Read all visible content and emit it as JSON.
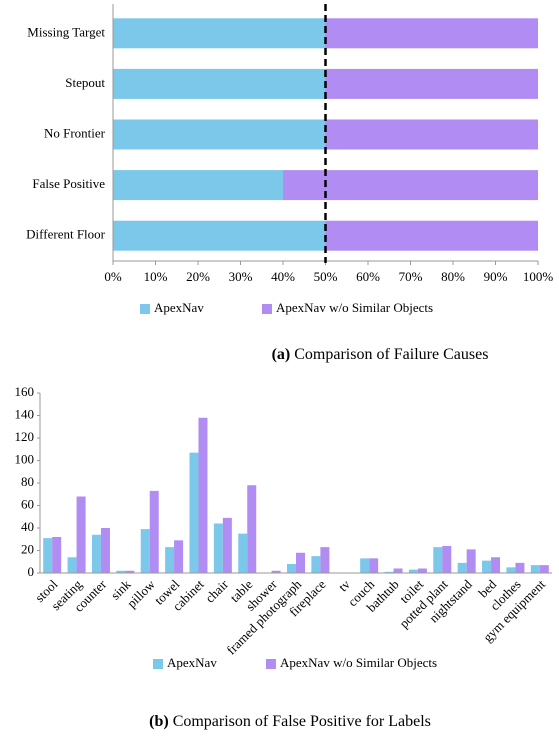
{
  "chart_data": [
    {
      "type": "bar",
      "horizontal": true,
      "stacked": true,
      "categories": [
        "Missing Target",
        "Stepout",
        "No Frontier",
        "False Positive",
        "Different Floor"
      ],
      "series": [
        {
          "name": "ApexNav",
          "color": "#7cc8ea",
          "values": [
            50,
            50,
            50,
            40,
            50
          ]
        },
        {
          "name": "ApexNav w/o Similar Objects",
          "color": "#b18cf2",
          "values": [
            50,
            50,
            50,
            60,
            50
          ]
        }
      ],
      "xlim": [
        0,
        100
      ],
      "xticks": [
        {
          "value": 0,
          "label": "0%"
        },
        {
          "value": 10,
          "label": "10%"
        },
        {
          "value": 20,
          "label": "20%"
        },
        {
          "value": 30,
          "label": "30%"
        },
        {
          "value": 40,
          "label": "40%"
        },
        {
          "value": 50,
          "label": "50%"
        },
        {
          "value": 60,
          "label": "60%"
        },
        {
          "value": 70,
          "label": "70%"
        },
        {
          "value": 80,
          "label": "80%"
        },
        {
          "value": 90,
          "label": "90%"
        },
        {
          "value": 100,
          "label": "100%"
        }
      ],
      "reference_line": 50,
      "caption_label": "(a)",
      "caption": "Comparison of Failure Causes"
    },
    {
      "type": "bar",
      "horizontal": false,
      "stacked": false,
      "categories": [
        "stool",
        "seating",
        "counter",
        "sink",
        "pillow",
        "towel",
        "cabinet",
        "chair",
        "table",
        "shower",
        "framed photograph",
        "fireplace",
        "tv",
        "couch",
        "bathtub",
        "toilet",
        "potted plant",
        "nightstand",
        "bed",
        "clothes",
        "gym equipment"
      ],
      "series": [
        {
          "name": "ApexNav",
          "color": "#7cc8ea",
          "values": [
            31,
            14,
            34,
            2,
            39,
            23,
            107,
            44,
            35,
            0,
            8,
            15,
            0,
            13,
            1,
            3,
            23,
            9,
            11,
            5,
            7
          ]
        },
        {
          "name": "ApexNav w/o Similar Objects",
          "color": "#b18cf2",
          "values": [
            32,
            68,
            40,
            2,
            73,
            29,
            138,
            49,
            78,
            2,
            18,
            23,
            0,
            13,
            4,
            4,
            24,
            21,
            14,
            9,
            7
          ]
        }
      ],
      "ylim": [
        0,
        160
      ],
      "yticks": [
        0,
        20,
        40,
        60,
        80,
        100,
        120,
        140,
        160
      ],
      "caption_label": "(b)",
      "caption": "Comparison of False Positive for Labels"
    }
  ]
}
